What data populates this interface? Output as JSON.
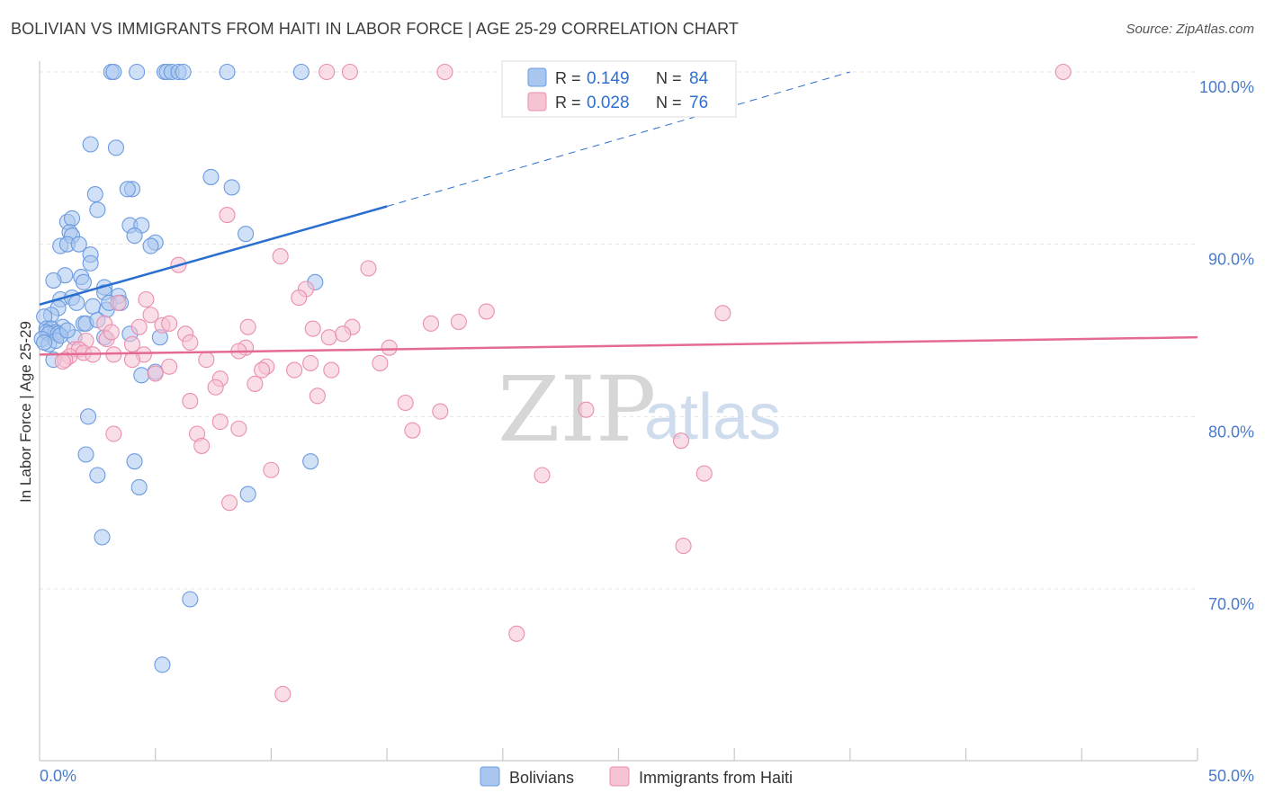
{
  "title": "BOLIVIAN VS IMMIGRANTS FROM HAITI IN LABOR FORCE | AGE 25-29 CORRELATION CHART",
  "source": "Source: ZipAtlas.com",
  "watermark": {
    "zip": "ZIP",
    "atlas": "atlas"
  },
  "colors": {
    "blue_fill": "#a9c7ee",
    "blue_stroke": "#6b9be0",
    "blue_line": "#2a6fcf",
    "pink_fill": "#f6c3d3",
    "pink_stroke": "#ea8fae",
    "pink_line": "#e46a93",
    "grid": "#e4e4e4",
    "axis_label": "#4a7bc8"
  },
  "chart_data": {
    "type": "scatter",
    "title": "BOLIVIAN VS IMMIGRANTS FROM HAITI IN LABOR FORCE | AGE 25-29 CORRELATION CHART",
    "xlabel": "",
    "ylabel": "In Labor Force | Age 25-29",
    "xlim": [
      0,
      50
    ],
    "ylim": [
      60,
      102
    ],
    "x_tick_labels": [
      {
        "value": 0,
        "label": "0.0%"
      },
      {
        "value": 50,
        "label": "50.0%"
      }
    ],
    "y_ticks": [
      {
        "value": 100,
        "label": "100.0%"
      },
      {
        "value": 90,
        "label": "90.0%"
      },
      {
        "value": 80,
        "label": "80.0%"
      },
      {
        "value": 70,
        "label": "70.0%"
      }
    ],
    "legend": {
      "entries": [
        {
          "r_label": "R =",
          "r": "0.149",
          "n_label": "N =",
          "n": "84"
        },
        {
          "r_label": "R =",
          "r": "0.028",
          "n_label": "N =",
          "n": "76"
        }
      ]
    },
    "series": [
      {
        "name": "Bolivians",
        "trend": {
          "x0": 0,
          "y0": 86.5,
          "x1": 15,
          "y1": 92.2,
          "dash_x1": 35,
          "dash_y1": 100
        },
        "points": [
          [
            3.1,
            100
          ],
          [
            3.2,
            100
          ],
          [
            4.2,
            100
          ],
          [
            5.4,
            100
          ],
          [
            5.5,
            100
          ],
          [
            5.7,
            100
          ],
          [
            6.0,
            100
          ],
          [
            6.2,
            100
          ],
          [
            8.1,
            100
          ],
          [
            11.3,
            100
          ],
          [
            2.2,
            95.8
          ],
          [
            3.3,
            95.6
          ],
          [
            7.4,
            93.9
          ],
          [
            8.3,
            93.3
          ],
          [
            4.0,
            93.2
          ],
          [
            3.8,
            93.2
          ],
          [
            2.4,
            92.9
          ],
          [
            2.5,
            92.0
          ],
          [
            1.2,
            91.3
          ],
          [
            1.4,
            91.5
          ],
          [
            3.9,
            91.1
          ],
          [
            4.4,
            91.1
          ],
          [
            1.3,
            90.7
          ],
          [
            1.4,
            90.5
          ],
          [
            4.1,
            90.5
          ],
          [
            5.0,
            90.1
          ],
          [
            4.8,
            89.9
          ],
          [
            0.9,
            89.9
          ],
          [
            1.2,
            90.0
          ],
          [
            1.7,
            90.0
          ],
          [
            2.2,
            89.4
          ],
          [
            8.9,
            90.6
          ],
          [
            2.2,
            88.9
          ],
          [
            1.1,
            88.2
          ],
          [
            1.8,
            88.1
          ],
          [
            0.6,
            87.9
          ],
          [
            1.9,
            87.8
          ],
          [
            2.8,
            87.5
          ],
          [
            2.8,
            87.2
          ],
          [
            3.4,
            87.0
          ],
          [
            11.9,
            87.8
          ],
          [
            0.9,
            86.8
          ],
          [
            1.4,
            86.9
          ],
          [
            1.6,
            86.6
          ],
          [
            2.3,
            86.4
          ],
          [
            2.9,
            86.2
          ],
          [
            3.0,
            86.6
          ],
          [
            3.5,
            86.6
          ],
          [
            0.8,
            86.3
          ],
          [
            0.5,
            85.9
          ],
          [
            0.2,
            85.8
          ],
          [
            1.0,
            85.2
          ],
          [
            1.9,
            85.4
          ],
          [
            2.0,
            85.4
          ],
          [
            2.5,
            85.6
          ],
          [
            0.3,
            85.1
          ],
          [
            0.5,
            85.1
          ],
          [
            0.3,
            84.9
          ],
          [
            0.7,
            84.9
          ],
          [
            0.4,
            84.8
          ],
          [
            0.8,
            84.8
          ],
          [
            2.8,
            84.6
          ],
          [
            3.9,
            84.8
          ],
          [
            5.2,
            84.6
          ],
          [
            0.1,
            84.5
          ],
          [
            0.4,
            84.2
          ],
          [
            0.7,
            84.4
          ],
          [
            0.2,
            84.3
          ],
          [
            0.6,
            83.3
          ],
          [
            4.4,
            82.4
          ],
          [
            5.0,
            82.6
          ],
          [
            2.1,
            80.0
          ],
          [
            2.0,
            77.8
          ],
          [
            4.1,
            77.4
          ],
          [
            11.7,
            77.4
          ],
          [
            2.5,
            76.6
          ],
          [
            4.3,
            75.9
          ],
          [
            9.0,
            75.5
          ],
          [
            2.7,
            73.0
          ],
          [
            6.5,
            69.4
          ],
          [
            5.3,
            65.6
          ],
          [
            1.5,
            84.6
          ],
          [
            0.9,
            84.7
          ],
          [
            1.2,
            85.0
          ]
        ]
      },
      {
        "name": "Immigrants from Haiti",
        "trend": {
          "x0": 0,
          "y0": 83.6,
          "x1": 50,
          "y1": 84.6
        },
        "points": [
          [
            12.4,
            100
          ],
          [
            13.4,
            100
          ],
          [
            17.5,
            100
          ],
          [
            44.2,
            100
          ],
          [
            8.1,
            91.7
          ],
          [
            6.0,
            88.8
          ],
          [
            10.4,
            89.3
          ],
          [
            14.2,
            88.6
          ],
          [
            11.5,
            87.4
          ],
          [
            11.2,
            86.9
          ],
          [
            4.6,
            86.8
          ],
          [
            3.4,
            86.6
          ],
          [
            19.3,
            86.1
          ],
          [
            29.5,
            86.0
          ],
          [
            4.8,
            85.9
          ],
          [
            16.9,
            85.4
          ],
          [
            18.1,
            85.5
          ],
          [
            5.3,
            85.3
          ],
          [
            5.6,
            85.4
          ],
          [
            4.3,
            85.2
          ],
          [
            9.0,
            85.2
          ],
          [
            11.8,
            85.1
          ],
          [
            13.5,
            85.2
          ],
          [
            2.8,
            85.4
          ],
          [
            6.3,
            84.8
          ],
          [
            2.9,
            84.5
          ],
          [
            3.1,
            84.9
          ],
          [
            12.5,
            84.6
          ],
          [
            13.1,
            84.8
          ],
          [
            6.5,
            84.3
          ],
          [
            15.1,
            84.0
          ],
          [
            2.0,
            84.4
          ],
          [
            8.9,
            84.0
          ],
          [
            8.6,
            83.8
          ],
          [
            1.5,
            83.9
          ],
          [
            1.7,
            83.9
          ],
          [
            1.9,
            83.7
          ],
          [
            2.3,
            83.6
          ],
          [
            3.2,
            83.6
          ],
          [
            4.5,
            83.6
          ],
          [
            1.3,
            83.5
          ],
          [
            1.1,
            83.3
          ],
          [
            4.0,
            83.3
          ],
          [
            7.2,
            83.3
          ],
          [
            14.7,
            83.1
          ],
          [
            11.7,
            83.1
          ],
          [
            9.8,
            82.9
          ],
          [
            5.6,
            82.9
          ],
          [
            9.6,
            82.7
          ],
          [
            11.0,
            82.7
          ],
          [
            12.6,
            82.7
          ],
          [
            1.0,
            83.2
          ],
          [
            5.0,
            82.5
          ],
          [
            7.8,
            82.2
          ],
          [
            9.3,
            81.9
          ],
          [
            7.6,
            81.7
          ],
          [
            12.0,
            81.2
          ],
          [
            6.5,
            80.9
          ],
          [
            15.8,
            80.8
          ],
          [
            23.6,
            80.4
          ],
          [
            17.3,
            80.3
          ],
          [
            7.8,
            79.7
          ],
          [
            8.6,
            79.3
          ],
          [
            16.1,
            79.2
          ],
          [
            6.8,
            79.0
          ],
          [
            3.2,
            79.0
          ],
          [
            7.0,
            78.3
          ],
          [
            27.7,
            78.6
          ],
          [
            10.0,
            76.9
          ],
          [
            28.7,
            76.7
          ],
          [
            21.7,
            76.6
          ],
          [
            8.2,
            75.0
          ],
          [
            27.8,
            72.5
          ],
          [
            20.6,
            67.4
          ],
          [
            10.5,
            63.9
          ],
          [
            4.0,
            84.2
          ]
        ]
      }
    ]
  }
}
